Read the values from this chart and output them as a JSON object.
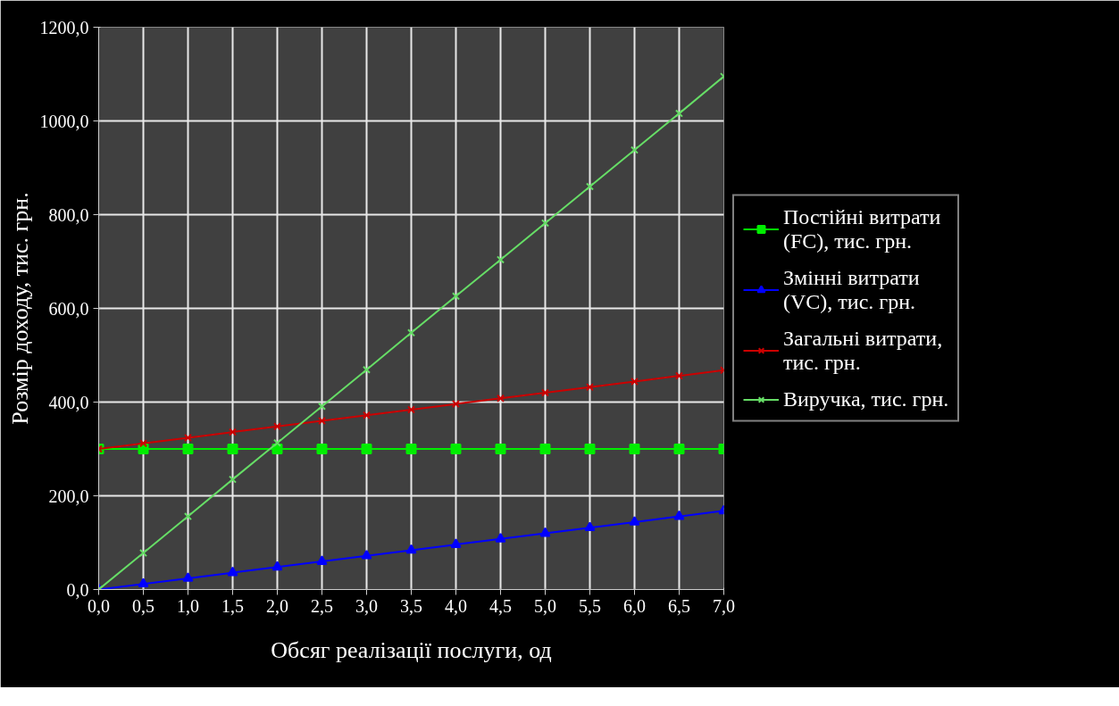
{
  "chart_data": {
    "type": "line",
    "xlabel": "Обсяг реалізації послуги, од",
    "ylabel": "Розмір доходу, тис. грн.",
    "x": [
      0,
      0.5,
      1,
      1.5,
      2,
      2.5,
      3,
      3.5,
      4,
      4.5,
      5,
      5.5,
      6,
      6.5,
      7
    ],
    "series": [
      {
        "name": "Постійні витрати (FC), тис. грн.",
        "color": "#00ee00",
        "marker": "square",
        "values": [
          300,
          300,
          300,
          300,
          300,
          300,
          300,
          300,
          300,
          300,
          300,
          300,
          300,
          300,
          300
        ]
      },
      {
        "name": "Змінні витрати (VC), тис. грн.",
        "color": "#0000ff",
        "marker": "triangle",
        "values": [
          0,
          12,
          24,
          36,
          48,
          60,
          72,
          84,
          96,
          108,
          120,
          132,
          144,
          156,
          168
        ]
      },
      {
        "name": "Загальні витрати, тис. грн.",
        "color": "#cc0000",
        "marker": "cross",
        "values": [
          300,
          312,
          324,
          336,
          348,
          360,
          372,
          384,
          396,
          408,
          420,
          432,
          444,
          456,
          468
        ]
      },
      {
        "name": "Виручка, тис. грн.",
        "color": "#66dd66",
        "marker": "cross",
        "values": [
          0,
          78,
          156,
          235,
          313,
          391,
          469,
          548,
          626,
          704,
          782,
          860,
          938,
          1016,
          1095
        ]
      }
    ],
    "xlim": [
      0,
      7
    ],
    "ylim": [
      0,
      1200
    ],
    "xticks": [
      {
        "value": 0,
        "label": "0,0"
      },
      {
        "value": 0.5,
        "label": "0,5"
      },
      {
        "value": 1,
        "label": "1,0"
      },
      {
        "value": 1.5,
        "label": "1,5"
      },
      {
        "value": 2,
        "label": "2,0"
      },
      {
        "value": 2.5,
        "label": "2,5"
      },
      {
        "value": 3,
        "label": "3,0"
      },
      {
        "value": 3.5,
        "label": "3,5"
      },
      {
        "value": 4,
        "label": "4,0"
      },
      {
        "value": 4.5,
        "label": "4,5"
      },
      {
        "value": 5,
        "label": "5,0"
      },
      {
        "value": 5.5,
        "label": "5,5"
      },
      {
        "value": 6,
        "label": "6,0"
      },
      {
        "value": 6.5,
        "label": "6,5"
      },
      {
        "value": 7,
        "label": "7,0"
      }
    ],
    "yticks": [
      {
        "value": 0,
        "label": "0,0"
      },
      {
        "value": 200,
        "label": "200,0"
      },
      {
        "value": 400,
        "label": "400,0"
      },
      {
        "value": 600,
        "label": "600,0"
      },
      {
        "value": 800,
        "label": "800,0"
      },
      {
        "value": 1000,
        "label": "1000,0"
      },
      {
        "value": 1200,
        "label": "1200,0"
      }
    ],
    "grid": true,
    "legend": "right",
    "line_style": "solid"
  }
}
